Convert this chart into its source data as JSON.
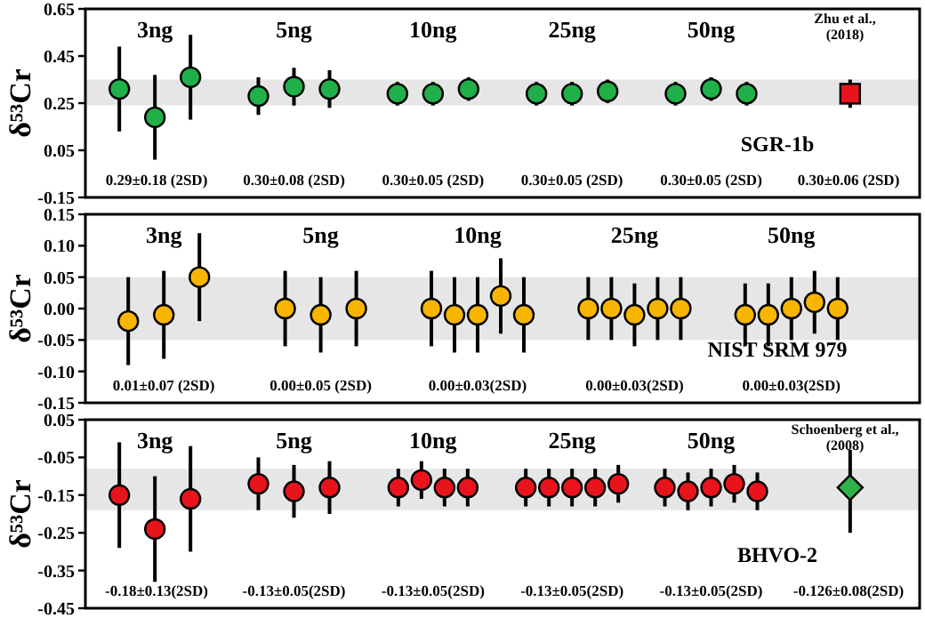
{
  "chart_data": [
    {
      "type": "scatter",
      "ylabel": "δ⁵³Cr",
      "ylim": [
        -0.15,
        0.65
      ],
      "yticks": [
        {
          "value": 0.65,
          "label": "0.65"
        },
        {
          "value": 0.45,
          "label": "0.45"
        },
        {
          "value": 0.25,
          "label": "0.25"
        },
        {
          "value": 0.05,
          "label": "0.05"
        },
        {
          "value": -0.15,
          "label": "-0.15"
        }
      ],
      "marker": "circle",
      "categories": [
        "3ng",
        "5ng",
        "10ng",
        "25ng",
        "50ng",
        "Zhu et al., (2018)"
      ],
      "bands": [
        {
          "axis": "y",
          "from": 0.24,
          "to": 0.35,
          "color": "#e6e6e6"
        }
      ],
      "series": [
        {
          "color": "#1fb04a",
          "values": [
            0.31,
            0.28,
            0.29,
            0.29,
            0.29,
            null
          ],
          "errors": [
            0.18,
            0.08,
            0.05,
            0.05,
            0.05,
            null
          ]
        },
        {
          "color": "#1fb04a",
          "values": [
            0.19,
            0.32,
            0.29,
            0.29,
            0.31,
            null
          ],
          "errors": [
            0.18,
            0.08,
            0.05,
            0.05,
            0.05,
            null
          ]
        },
        {
          "color": "#1fb04a",
          "values": [
            0.36,
            0.31,
            0.31,
            0.3,
            0.29,
            null
          ],
          "errors": [
            0.18,
            0.08,
            0.05,
            0.05,
            0.05,
            null
          ]
        },
        {
          "color": "#e8141c",
          "marker": "square",
          "values": [
            null,
            null,
            null,
            null,
            null,
            0.29
          ],
          "errors": [
            null,
            null,
            null,
            null,
            null,
            0.06
          ]
        }
      ],
      "annotations": [
        "0.29±0.18 (2SD)",
        "0.30±0.08 (2SD)",
        "0.30±0.05 (2SD)",
        "0.30±0.05 (2SD)",
        "0.30±0.05 (2SD)",
        "0.30±0.06 (2SD)",
        "SGR-1b"
      ]
    },
    {
      "type": "scatter",
      "ylabel": "δ⁵³Cr",
      "ylim": [
        -0.15,
        0.15
      ],
      "yticks": [
        {
          "value": 0.15,
          "label": "0.15"
        },
        {
          "value": 0.1,
          "label": "0.10"
        },
        {
          "value": 0.05,
          "label": "0.05"
        },
        {
          "value": 0,
          "label": "0.00"
        },
        {
          "value": -0.05,
          "label": "-0.05"
        },
        {
          "value": -0.1,
          "label": "-0.10"
        },
        {
          "value": -0.15,
          "label": "-0.15"
        }
      ],
      "marker": "circle",
      "categories": [
        "3ng",
        "5ng",
        "10ng",
        "25ng",
        "50ng"
      ],
      "bands": [
        {
          "axis": "y",
          "from": -0.05,
          "to": 0.05,
          "color": "#e6e6e6"
        }
      ],
      "series": [
        {
          "color": "#f7b500",
          "values": [
            -0.02,
            0,
            0,
            0,
            -0.01
          ],
          "errors": [
            0.07,
            0.06,
            0.06,
            0.05,
            0.05
          ]
        },
        {
          "color": "#f7b500",
          "values": [
            -0.01,
            -0.01,
            -0.01,
            0,
            -0.01
          ],
          "errors": [
            0.07,
            0.06,
            0.06,
            0.05,
            0.05
          ]
        },
        {
          "color": "#f7b500",
          "values": [
            0.05,
            0,
            -0.01,
            -0.01,
            0
          ],
          "errors": [
            0.07,
            0.06,
            0.06,
            0.05,
            0.05
          ]
        },
        {
          "color": "#f7b500",
          "values": [
            null,
            null,
            0.02,
            0,
            0.01
          ],
          "errors": [
            null,
            null,
            0.06,
            0.05,
            0.05
          ]
        },
        {
          "color": "#f7b500",
          "values": [
            null,
            null,
            -0.01,
            0,
            0
          ],
          "errors": [
            null,
            null,
            0.06,
            0.05,
            0.05
          ]
        }
      ],
      "annotations": [
        "0.01±0.07 (2SD)",
        "0.00±0.05 (2SD)",
        "0.00±0.03(2SD)",
        "0.00±0.03(2SD)",
        "0.00±0.03(2SD)",
        "NIST SRM 979"
      ]
    },
    {
      "type": "scatter",
      "ylabel": "δ⁵³Cr",
      "ylim": [
        -0.45,
        0.05
      ],
      "yticks": [
        {
          "value": 0.05,
          "label": "0.05"
        },
        {
          "value": -0.05,
          "label": "-0.05"
        },
        {
          "value": -0.15,
          "label": "-0.15"
        },
        {
          "value": -0.25,
          "label": "-0.25"
        },
        {
          "value": -0.35,
          "label": "-0.35"
        },
        {
          "value": -0.45,
          "label": "-0.45"
        }
      ],
      "marker": "circle",
      "categories": [
        "3ng",
        "5ng",
        "10ng",
        "25ng",
        "50ng",
        "Schoenberg et al., (2008)"
      ],
      "bands": [
        {
          "axis": "y",
          "from": -0.19,
          "to": -0.08,
          "color": "#e6e6e6"
        }
      ],
      "series": [
        {
          "color": "#e8141c",
          "values": [
            -0.15,
            -0.12,
            -0.13,
            -0.13,
            -0.13,
            null
          ],
          "errors": [
            0.14,
            0.07,
            0.05,
            0.05,
            0.05,
            null
          ]
        },
        {
          "color": "#e8141c",
          "values": [
            -0.24,
            -0.14,
            -0.11,
            -0.13,
            -0.14,
            null
          ],
          "errors": [
            0.14,
            0.07,
            0.05,
            0.05,
            0.05,
            null
          ]
        },
        {
          "color": "#e8141c",
          "values": [
            -0.16,
            -0.13,
            -0.13,
            -0.13,
            -0.13,
            null
          ],
          "errors": [
            0.14,
            0.07,
            0.05,
            0.05,
            0.05,
            null
          ]
        },
        {
          "color": "#e8141c",
          "values": [
            null,
            null,
            -0.13,
            -0.13,
            -0.12,
            null
          ],
          "errors": [
            null,
            null,
            0.05,
            0.05,
            0.05,
            null
          ]
        },
        {
          "color": "#e8141c",
          "values": [
            null,
            null,
            null,
            -0.12,
            -0.14,
            null
          ],
          "errors": [
            null,
            null,
            null,
            0.05,
            0.05,
            null
          ]
        },
        {
          "color": "#2db34a",
          "marker": "diamond",
          "values": [
            null,
            null,
            null,
            null,
            null,
            -0.13
          ],
          "errors": [
            null,
            null,
            null,
            null,
            null,
            [
              -0.25,
              -0.03
            ]
          ]
        }
      ],
      "annotations": [
        "-0.18±0.13(2SD)",
        "-0.13±0.05(2SD)",
        "-0.13±0.05(2SD)",
        "-0.13±0.05(2SD)",
        "-0.13±0.05(2SD)",
        "-0.126±0.08(2SD)",
        "BHVO-2"
      ]
    }
  ]
}
